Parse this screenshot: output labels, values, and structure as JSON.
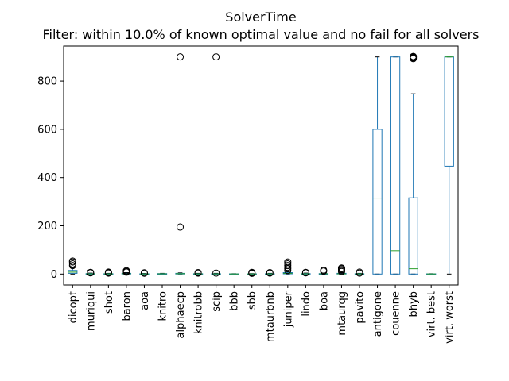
{
  "chart_data": {
    "type": "box",
    "title": "SolverTime",
    "subtitle": "Filter: within 10.0% of known optimal value and no fail for all solvers",
    "xlabel": "",
    "ylabel": "",
    "ylim": [
      -45,
      945
    ],
    "yticks": [
      0,
      200,
      400,
      600,
      800
    ],
    "grid": false,
    "colors": {
      "box": "#1f77b4",
      "median": "#2ca02c",
      "whisker": "#1f77b4",
      "outlier": "#000000"
    },
    "categories": [
      "dicopt",
      "muriqui",
      "shot",
      "baron",
      "aoa",
      "knitro",
      "alphaecp",
      "knitrobb",
      "scip",
      "bbb",
      "sbb",
      "mtaurbnb",
      "juniper",
      "lindo",
      "boa",
      "mtaurqg",
      "pavito",
      "antigone",
      "couenne",
      "bhyb",
      "virt. best",
      "virt. worst"
    ],
    "boxes": [
      {
        "name": "dicopt",
        "min": 0,
        "q1": 3,
        "median": 8,
        "q3": 15,
        "max": 26,
        "outliers": [
          35,
          42,
          50,
          54
        ]
      },
      {
        "name": "muriqui",
        "min": 0,
        "q1": 0.5,
        "median": 1,
        "q3": 2,
        "max": 4,
        "outliers": [
          5,
          7
        ]
      },
      {
        "name": "shot",
        "min": 0,
        "q1": 0.3,
        "median": 0.8,
        "q3": 1.5,
        "max": 3,
        "outliers": [
          4,
          6,
          8
        ]
      },
      {
        "name": "baron",
        "min": 0,
        "q1": 0.5,
        "median": 1.5,
        "q3": 3,
        "max": 6,
        "outliers": [
          8,
          11,
          14
        ]
      },
      {
        "name": "aoa",
        "min": 0,
        "q1": 0.3,
        "median": 0.6,
        "q3": 1.2,
        "max": 2.5,
        "outliers": [
          3.5,
          5
        ]
      },
      {
        "name": "knitro",
        "min": 0,
        "q1": 0.5,
        "median": 1,
        "q3": 2,
        "max": 3,
        "outliers": []
      },
      {
        "name": "alphaecp",
        "min": 0,
        "q1": 0.5,
        "median": 1.5,
        "q3": 3,
        "max": 5,
        "outliers": [
          195,
          900
        ]
      },
      {
        "name": "knitrobb",
        "min": 0,
        "q1": 0.3,
        "median": 0.8,
        "q3": 1.5,
        "max": 3,
        "outliers": [
          4,
          6
        ]
      },
      {
        "name": "scip",
        "min": 0,
        "q1": 0.3,
        "median": 0.8,
        "q3": 1.5,
        "max": 3,
        "outliers": [
          4,
          900
        ]
      },
      {
        "name": "bbb",
        "min": 0,
        "q1": 0.2,
        "median": 0.5,
        "q3": 1,
        "max": 1.5,
        "outliers": []
      },
      {
        "name": "sbb",
        "min": 0,
        "q1": 0.2,
        "median": 0.6,
        "q3": 1,
        "max": 2,
        "outliers": [
          3,
          5,
          7
        ]
      },
      {
        "name": "mtaurbnb",
        "min": 0,
        "q1": 0.3,
        "median": 0.8,
        "q3": 1.5,
        "max": 3,
        "outliers": [
          4,
          6
        ]
      },
      {
        "name": "juniper",
        "min": 0,
        "q1": 1,
        "median": 3,
        "q3": 6,
        "max": 10,
        "outliers": [
          15,
          22,
          28,
          35,
          42,
          50
        ]
      },
      {
        "name": "lindo",
        "min": 0,
        "q1": 0.5,
        "median": 1,
        "q3": 2,
        "max": 4,
        "outliers": [
          5,
          7
        ]
      },
      {
        "name": "boa",
        "min": 0,
        "q1": 0.5,
        "median": 1,
        "q3": 2,
        "max": 4,
        "outliers": [
          12,
          16
        ]
      },
      {
        "name": "mtaurqg",
        "min": 0,
        "q1": 0.5,
        "median": 1,
        "q3": 3,
        "max": 6,
        "outliers": [
          10,
          14,
          18,
          22,
          25
        ]
      },
      {
        "name": "pavito",
        "min": 0,
        "q1": 0.3,
        "median": 0.8,
        "q3": 1.5,
        "max": 3,
        "outliers": [
          4,
          8
        ]
      },
      {
        "name": "antigone",
        "min": 0,
        "q1": 0,
        "median": 315,
        "q3": 600,
        "max": 900,
        "outliers": []
      },
      {
        "name": "couenne",
        "min": 0,
        "q1": 0,
        "median": 97,
        "q3": 900,
        "max": 900,
        "outliers": []
      },
      {
        "name": "bhyb",
        "min": 0,
        "q1": 0,
        "median": 22,
        "q3": 316,
        "max": 747,
        "outliers": [
          893,
          896,
          898,
          900,
          902
        ]
      },
      {
        "name": "virt. best",
        "min": 0,
        "q1": 0.2,
        "median": 0.5,
        "q3": 1,
        "max": 1.5,
        "outliers": []
      },
      {
        "name": "virt. worst",
        "min": 0,
        "q1": 447,
        "median": 900,
        "q3": 900,
        "max": 900,
        "outliers": []
      }
    ]
  }
}
